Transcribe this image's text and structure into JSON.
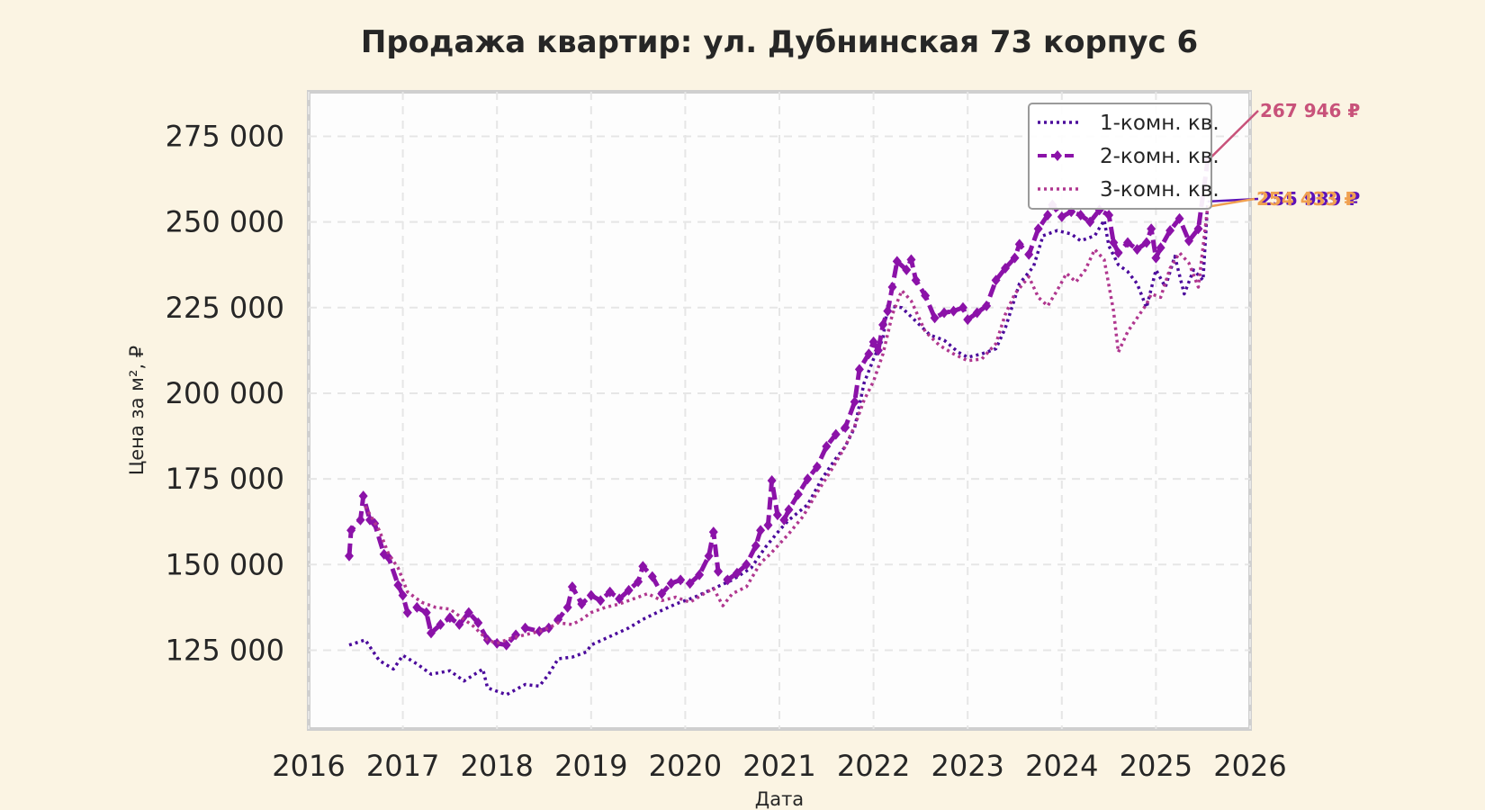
{
  "chart_data": {
    "type": "line",
    "title": "Продажа квартир: ул. Дубнинская 73 корпус 6",
    "xlabel": "Дата",
    "ylabel": "Цена за м², ₽",
    "xlim": [
      2016,
      2026
    ],
    "ylim": [
      102000,
      288000
    ],
    "x_ticks": [
      2016,
      2017,
      2018,
      2019,
      2020,
      2021,
      2022,
      2023,
      2024,
      2025,
      2026
    ],
    "x_tick_labels": [
      "2016",
      "2017",
      "2018",
      "2019",
      "2020",
      "2021",
      "2022",
      "2023",
      "2024",
      "2025",
      "2026"
    ],
    "y_ticks": [
      125000,
      150000,
      175000,
      200000,
      225000,
      250000,
      275000
    ],
    "y_tick_labels": [
      "125 000",
      "150 000",
      "175 000",
      "200 000",
      "225 000",
      "250 000",
      "275 000"
    ],
    "grid": true,
    "legend_position": "top-right",
    "series": [
      {
        "name": "1-комн. кв.",
        "color": "#4b0a9c",
        "style": "dotted",
        "end_label": "255 989 ₽",
        "end_value": 255989,
        "points": [
          [
            2016.43,
            126500
          ],
          [
            2016.6,
            128000
          ],
          [
            2016.75,
            122000
          ],
          [
            2016.9,
            119500
          ],
          [
            2017.0,
            123500
          ],
          [
            2017.15,
            121000
          ],
          [
            2017.3,
            118000
          ],
          [
            2017.5,
            119000
          ],
          [
            2017.65,
            116000
          ],
          [
            2017.85,
            119500
          ],
          [
            2017.9,
            114000
          ],
          [
            2018.1,
            112000
          ],
          [
            2018.3,
            115000
          ],
          [
            2018.45,
            114500
          ],
          [
            2018.55,
            118000
          ],
          [
            2018.65,
            122500
          ],
          [
            2018.8,
            123000
          ],
          [
            2018.95,
            124500
          ],
          [
            2019.0,
            126500
          ],
          [
            2019.2,
            129000
          ],
          [
            2019.4,
            131500
          ],
          [
            2019.55,
            134000
          ],
          [
            2019.7,
            136000
          ],
          [
            2019.9,
            138500
          ],
          [
            2020.1,
            140500
          ],
          [
            2020.3,
            143000
          ],
          [
            2020.5,
            145500
          ],
          [
            2020.7,
            149000
          ],
          [
            2020.85,
            155000
          ],
          [
            2021.0,
            160000
          ],
          [
            2021.1,
            163000
          ],
          [
            2021.3,
            167500
          ],
          [
            2021.45,
            175000
          ],
          [
            2021.6,
            181000
          ],
          [
            2021.7,
            184500
          ],
          [
            2021.8,
            190000
          ],
          [
            2021.9,
            203000
          ],
          [
            2022.0,
            210000
          ],
          [
            2022.1,
            216000
          ],
          [
            2022.15,
            225500
          ],
          [
            2022.3,
            225000
          ],
          [
            2022.45,
            221000
          ],
          [
            2022.6,
            217000
          ],
          [
            2022.75,
            215500
          ],
          [
            2022.9,
            212000
          ],
          [
            2023.0,
            210500
          ],
          [
            2023.15,
            211500
          ],
          [
            2023.3,
            213000
          ],
          [
            2023.4,
            219000
          ],
          [
            2023.55,
            232000
          ],
          [
            2023.7,
            237000
          ],
          [
            2023.8,
            246000
          ],
          [
            2023.95,
            247500
          ],
          [
            2024.1,
            246500
          ],
          [
            2024.2,
            244500
          ],
          [
            2024.35,
            246000
          ],
          [
            2024.45,
            250500
          ],
          [
            2024.5,
            243000
          ],
          [
            2024.6,
            237500
          ],
          [
            2024.7,
            235500
          ],
          [
            2024.8,
            232000
          ],
          [
            2024.9,
            225000
          ],
          [
            2025.0,
            236000
          ],
          [
            2025.1,
            231000
          ],
          [
            2025.2,
            240000
          ],
          [
            2025.3,
            229000
          ],
          [
            2025.4,
            236000
          ],
          [
            2025.5,
            233000
          ],
          [
            2025.55,
            255989
          ]
        ]
      },
      {
        "name": "2-комн. кв.",
        "color": "#8b12a8",
        "style": "dashed-diamond",
        "end_label": "267 946 ₽",
        "end_value": 267946,
        "points": [
          [
            2016.43,
            152500
          ],
          [
            2016.45,
            160000
          ],
          [
            2016.55,
            163000
          ],
          [
            2016.58,
            170000
          ],
          [
            2016.65,
            163000
          ],
          [
            2016.7,
            162000
          ],
          [
            2016.8,
            153000
          ],
          [
            2016.85,
            152000
          ],
          [
            2016.95,
            144000
          ],
          [
            2017.0,
            141000
          ],
          [
            2017.05,
            136000
          ],
          [
            2017.15,
            137500
          ],
          [
            2017.25,
            136000
          ],
          [
            2017.3,
            130000
          ],
          [
            2017.4,
            132500
          ],
          [
            2017.5,
            134500
          ],
          [
            2017.6,
            132500
          ],
          [
            2017.7,
            136000
          ],
          [
            2017.8,
            133000
          ],
          [
            2017.9,
            128000
          ],
          [
            2018.0,
            127000
          ],
          [
            2018.1,
            126500
          ],
          [
            2018.2,
            129500
          ],
          [
            2018.3,
            131500
          ],
          [
            2018.45,
            130500
          ],
          [
            2018.55,
            131500
          ],
          [
            2018.65,
            134000
          ],
          [
            2018.75,
            137500
          ],
          [
            2018.8,
            143500
          ],
          [
            2018.9,
            138500
          ],
          [
            2019.0,
            141000
          ],
          [
            2019.1,
            139500
          ],
          [
            2019.2,
            142000
          ],
          [
            2019.3,
            140000
          ],
          [
            2019.4,
            142500
          ],
          [
            2019.5,
            145000
          ],
          [
            2019.55,
            149500
          ],
          [
            2019.65,
            146500
          ],
          [
            2019.75,
            141500
          ],
          [
            2019.85,
            144500
          ],
          [
            2019.95,
            145500
          ],
          [
            2020.05,
            144500
          ],
          [
            2020.15,
            147000
          ],
          [
            2020.25,
            152500
          ],
          [
            2020.3,
            159500
          ],
          [
            2020.35,
            148000
          ],
          [
            2020.45,
            145500
          ],
          [
            2020.55,
            147500
          ],
          [
            2020.65,
            150000
          ],
          [
            2020.75,
            155500
          ],
          [
            2020.8,
            160000
          ],
          [
            2020.88,
            161500
          ],
          [
            2020.92,
            174500
          ],
          [
            2020.98,
            164500
          ],
          [
            2021.05,
            163000
          ],
          [
            2021.1,
            166000
          ],
          [
            2021.2,
            170500
          ],
          [
            2021.3,
            175000
          ],
          [
            2021.4,
            178500
          ],
          [
            2021.5,
            184500
          ],
          [
            2021.6,
            188000
          ],
          [
            2021.7,
            190000
          ],
          [
            2021.8,
            197500
          ],
          [
            2021.85,
            207000
          ],
          [
            2021.95,
            211500
          ],
          [
            2022.0,
            215000
          ],
          [
            2022.05,
            212500
          ],
          [
            2022.1,
            220000
          ],
          [
            2022.15,
            224000
          ],
          [
            2022.2,
            231000
          ],
          [
            2022.25,
            238500
          ],
          [
            2022.35,
            236000
          ],
          [
            2022.4,
            239000
          ],
          [
            2022.45,
            233000
          ],
          [
            2022.55,
            228500
          ],
          [
            2022.65,
            222000
          ],
          [
            2022.75,
            223500
          ],
          [
            2022.85,
            224000
          ],
          [
            2022.95,
            225000
          ],
          [
            2023.0,
            221500
          ],
          [
            2023.1,
            223500
          ],
          [
            2023.2,
            225500
          ],
          [
            2023.3,
            233000
          ],
          [
            2023.4,
            236500
          ],
          [
            2023.5,
            239500
          ],
          [
            2023.55,
            243500
          ],
          [
            2023.65,
            240500
          ],
          [
            2023.75,
            248000
          ],
          [
            2023.85,
            252000
          ],
          [
            2023.9,
            255000
          ],
          [
            2024.0,
            251500
          ],
          [
            2024.1,
            253000
          ],
          [
            2024.2,
            252000
          ],
          [
            2024.3,
            250000
          ],
          [
            2024.4,
            253500
          ],
          [
            2024.5,
            252000
          ],
          [
            2024.55,
            244000
          ],
          [
            2024.6,
            241000
          ],
          [
            2024.7,
            244000
          ],
          [
            2024.8,
            242000
          ],
          [
            2024.9,
            244000
          ],
          [
            2024.95,
            248000
          ],
          [
            2025.0,
            239500
          ],
          [
            2025.05,
            242500
          ],
          [
            2025.15,
            247500
          ],
          [
            2025.25,
            251000
          ],
          [
            2025.35,
            244500
          ],
          [
            2025.45,
            248000
          ],
          [
            2025.55,
            267946
          ]
        ]
      },
      {
        "name": "3-комн. кв.",
        "color": "#b0378f",
        "style": "dotted",
        "end_label": "254 433 ₽",
        "end_value": 254433,
        "points": [
          [
            2016.6,
            167000
          ],
          [
            2016.75,
            160000
          ],
          [
            2016.85,
            153000
          ],
          [
            2016.95,
            149000
          ],
          [
            2017.05,
            142000
          ],
          [
            2017.2,
            139000
          ],
          [
            2017.35,
            137500
          ],
          [
            2017.5,
            137000
          ],
          [
            2017.65,
            134000
          ],
          [
            2017.75,
            132000
          ],
          [
            2017.9,
            128000
          ],
          [
            2018.0,
            127000
          ],
          [
            2018.15,
            128500
          ],
          [
            2018.3,
            129500
          ],
          [
            2018.45,
            130500
          ],
          [
            2018.55,
            131500
          ],
          [
            2018.65,
            133000
          ],
          [
            2018.8,
            132500
          ],
          [
            2018.9,
            134000
          ],
          [
            2019.0,
            136000
          ],
          [
            2019.15,
            137500
          ],
          [
            2019.3,
            138500
          ],
          [
            2019.45,
            140000
          ],
          [
            2019.6,
            141500
          ],
          [
            2019.75,
            139500
          ],
          [
            2019.9,
            140500
          ],
          [
            2020.05,
            139000
          ],
          [
            2020.2,
            141500
          ],
          [
            2020.3,
            143000
          ],
          [
            2020.4,
            138000
          ],
          [
            2020.5,
            141500
          ],
          [
            2020.65,
            143500
          ],
          [
            2020.8,
            150500
          ],
          [
            2020.9,
            153000
          ],
          [
            2021.0,
            156000
          ],
          [
            2021.1,
            159000
          ],
          [
            2021.25,
            164000
          ],
          [
            2021.4,
            171000
          ],
          [
            2021.55,
            177500
          ],
          [
            2021.7,
            184500
          ],
          [
            2021.8,
            190500
          ],
          [
            2021.9,
            198000
          ],
          [
            2022.0,
            203500
          ],
          [
            2022.1,
            211500
          ],
          [
            2022.2,
            223000
          ],
          [
            2022.3,
            230000
          ],
          [
            2022.4,
            227000
          ],
          [
            2022.55,
            218000
          ],
          [
            2022.7,
            214000
          ],
          [
            2022.85,
            211500
          ],
          [
            2023.0,
            209500
          ],
          [
            2023.15,
            210000
          ],
          [
            2023.3,
            214500
          ],
          [
            2023.4,
            223000
          ],
          [
            2023.5,
            229000
          ],
          [
            2023.65,
            234000
          ],
          [
            2023.75,
            228000
          ],
          [
            2023.85,
            225500
          ],
          [
            2023.95,
            230000
          ],
          [
            2024.05,
            235000
          ],
          [
            2024.15,
            232500
          ],
          [
            2024.25,
            236000
          ],
          [
            2024.35,
            242000
          ],
          [
            2024.45,
            239000
          ],
          [
            2024.55,
            224000
          ],
          [
            2024.6,
            212000
          ],
          [
            2024.7,
            218000
          ],
          [
            2024.8,
            222000
          ],
          [
            2024.9,
            226000
          ],
          [
            2024.95,
            229000
          ],
          [
            2025.05,
            228000
          ],
          [
            2025.15,
            236500
          ],
          [
            2025.25,
            241000
          ],
          [
            2025.35,
            238000
          ],
          [
            2025.45,
            231000
          ],
          [
            2025.55,
            254433
          ]
        ]
      }
    ]
  }
}
